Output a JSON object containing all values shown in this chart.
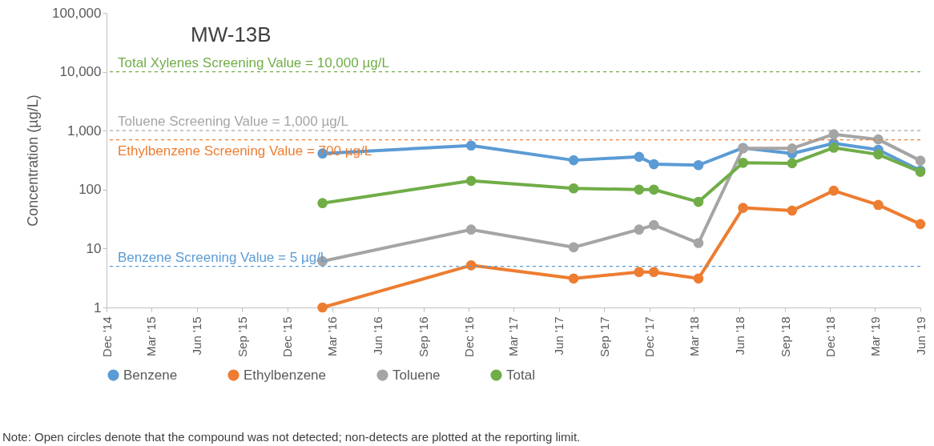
{
  "chart_data": {
    "type": "line",
    "title": "MW-13B",
    "ylabel": "Concentration (µg/L)",
    "x": [
      "2016-02-10",
      "2016-12-06",
      "2017-07-01",
      "2017-11-10",
      "2017-12-10",
      "2018-03-10",
      "2018-06-08",
      "2018-09-15",
      "2018-12-08",
      "2019-03-08",
      "2019-06-01"
    ],
    "series": [
      {
        "name": "Benzene",
        "color": "#5b9bd5",
        "values": [
          410,
          560,
          315,
          360,
          270,
          260,
          510,
          410,
          610,
          475,
          210
        ]
      },
      {
        "name": "Ethylbenzene",
        "color": "#ed7d31",
        "values": [
          1,
          5.2,
          3.1,
          4,
          4,
          3.1,
          49,
          44,
          96,
          55,
          26
        ]
      },
      {
        "name": "Toluene",
        "color": "#a5a5a5",
        "values": [
          6.1,
          21,
          10.5,
          21,
          25,
          12.4,
          500,
          500,
          870,
          710,
          310
        ]
      },
      {
        "name": "Total",
        "color": "#70ad47",
        "values": [
          59,
          141,
          105,
          100,
          100,
          62,
          285,
          280,
          515,
          395,
          200
        ]
      }
    ],
    "log": true,
    "marker": "circle",
    "line_style": "solid",
    "grid": false,
    "legend": "bottom",
    "xlim": [
      "2014-12-01",
      "2019-06-01"
    ],
    "xticks": [
      {
        "value": "2014-12-01",
        "label": "Dec '14"
      },
      {
        "value": "2015-03-01",
        "label": "Mar '15"
      },
      {
        "value": "2015-06-01",
        "label": "Jun '15"
      },
      {
        "value": "2015-09-01",
        "label": "Sep '15"
      },
      {
        "value": "2015-12-01",
        "label": "Dec '15"
      },
      {
        "value": "2016-03-01",
        "label": "Mar '16"
      },
      {
        "value": "2016-06-01",
        "label": "Jun '16"
      },
      {
        "value": "2016-09-01",
        "label": "Sep '16"
      },
      {
        "value": "2016-12-01",
        "label": "Dec '16"
      },
      {
        "value": "2017-03-01",
        "label": "Mar '17"
      },
      {
        "value": "2017-06-01",
        "label": "Jun '17"
      },
      {
        "value": "2017-09-01",
        "label": "Sep '17"
      },
      {
        "value": "2017-12-01",
        "label": "Dec '17"
      },
      {
        "value": "2018-03-01",
        "label": "Mar '18"
      },
      {
        "value": "2018-06-01",
        "label": "Jun '18"
      },
      {
        "value": "2018-09-01",
        "label": "Sep '18"
      },
      {
        "value": "2018-12-01",
        "label": "Dec '18"
      },
      {
        "value": "2019-03-01",
        "label": "Mar '19"
      },
      {
        "value": "2019-06-01",
        "label": "Jun '19"
      }
    ],
    "ylim": [
      1,
      100000
    ],
    "yticks": [
      1,
      10,
      100,
      {
        "value": 1000,
        "label": "1,000"
      },
      {
        "value": 10000,
        "label": "10,000"
      },
      {
        "value": 100000,
        "label": "100,000"
      }
    ],
    "ref_lines": [
      {
        "axis": "y",
        "value": 10000,
        "label": "Total Xylenes Screening Value = 10,000 µg/L",
        "color": "#70ad47",
        "line_style": "dashed"
      },
      {
        "axis": "y",
        "value": 1000,
        "label": "Toluene Screening Value = 1,000 µg/L",
        "color": "#a5a5a5",
        "line_style": "dashed"
      },
      {
        "axis": "y",
        "value": 700,
        "label": "Ethylbenzene Screening Value = 700 µg/L",
        "color": "#ed7d31",
        "line_style": "dashed"
      },
      {
        "axis": "y",
        "value": 5,
        "label": "Benzene Screening Value = 5 µg/L",
        "color": "#5b9bd5",
        "line_style": "dashed"
      }
    ],
    "annotations": [
      "Note:  Open circles denote that the compound was not detected; non-detects are plotted at the reporting limit."
    ]
  }
}
